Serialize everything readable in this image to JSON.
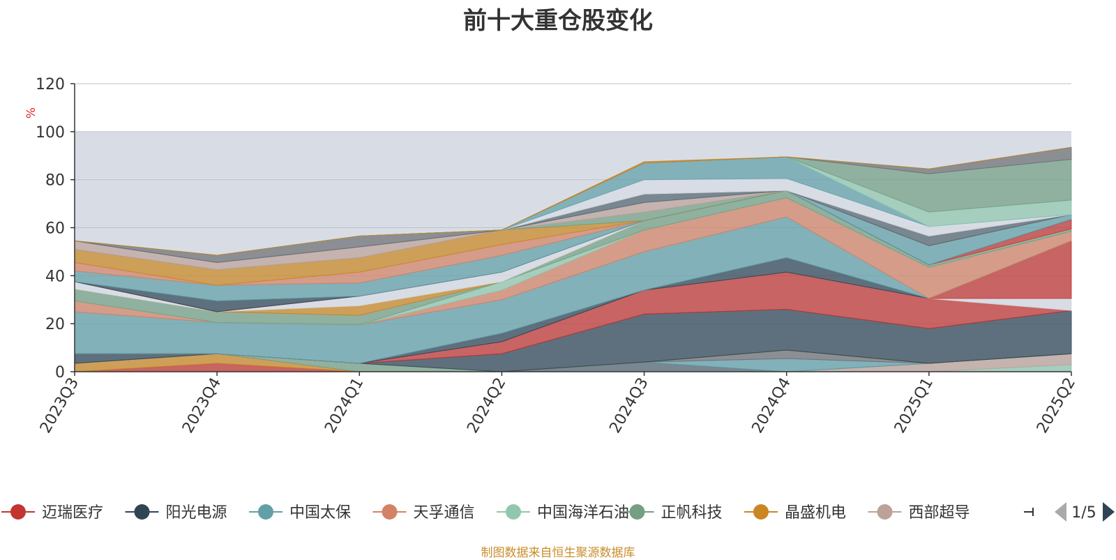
{
  "title": "前十大重仓股变化",
  "footer": "制图数据来自恒生聚源数据库",
  "legend": {
    "items": [
      {
        "label": "迈瑞医疗",
        "color": "#c23531"
      },
      {
        "label": "阳光电源",
        "color": "#2f4554"
      },
      {
        "label": "中国太保",
        "color": "#61a0a8"
      },
      {
        "label": "天孚通信",
        "color": "#d48265"
      },
      {
        "label": "中国海洋石油",
        "color": "#91c7ae"
      },
      {
        "label": "正帆科技",
        "color": "#749f83"
      },
      {
        "label": "晶盛机电",
        "color": "#ca8622"
      },
      {
        "label": "西部超导",
        "color": "#bda29a"
      }
    ],
    "page": "1/5"
  },
  "chart_data": {
    "type": "area",
    "stacked": true,
    "categories": [
      "2023Q3",
      "2023Q4",
      "2024Q1",
      "2024Q2",
      "2024Q3",
      "2024Q4",
      "2025Q1",
      "2025Q2"
    ],
    "ylim": [
      0,
      120
    ],
    "yticks": [
      0,
      20,
      40,
      60,
      80,
      100,
      120
    ],
    "ylabel": "%",
    "highlight_band": [
      0,
      100
    ],
    "band_color": "#d8dde5",
    "series": [
      {
        "color": "#91c7ae",
        "values": [
          0,
          0,
          0,
          0,
          0,
          0,
          0,
          3
        ]
      },
      {
        "color": "#bda29a",
        "values": [
          0,
          0,
          0,
          0,
          0,
          0,
          3.5,
          4.5
        ]
      },
      {
        "color": "#546570",
        "values": [
          0,
          0,
          0,
          0,
          4,
          0,
          0,
          0
        ]
      },
      {
        "color": "#61a0a8",
        "values": [
          0,
          0,
          0,
          0,
          0,
          5.5,
          0,
          0
        ]
      },
      {
        "color": "#6e7074",
        "values": [
          0,
          0,
          0,
          0,
          0,
          3.5,
          0,
          0
        ]
      },
      {
        "color": "#c23531",
        "values": [
          0,
          3.5,
          0,
          0,
          0,
          0,
          0,
          0
        ]
      },
      {
        "color": "#ca8622",
        "values": [
          3.5,
          4,
          0,
          0,
          0,
          0,
          0,
          0
        ]
      },
      {
        "color": "#749f83",
        "values": [
          0,
          0,
          3.5,
          0,
          0,
          0,
          0,
          0
        ]
      },
      {
        "color": "#2f4554",
        "values": [
          4,
          0,
          0,
          7.5,
          20,
          17,
          14.5,
          18
        ]
      },
      {
        "color": "#c23531",
        "values": [
          0,
          0,
          0,
          5,
          10,
          15.5,
          12.5,
          0
        ]
      },
      {
        "color": "#d8dde5",
        "values": [
          0,
          0,
          0,
          0,
          0,
          0,
          0,
          5
        ]
      },
      {
        "color": "#c23531",
        "values": [
          0,
          0,
          0,
          0,
          0,
          0,
          0,
          24
        ]
      },
      {
        "color": "#2f4554",
        "values": [
          0,
          0,
          0,
          3.5,
          0,
          6,
          0,
          0
        ]
      },
      {
        "color": "#61a0a8",
        "values": [
          17.5,
          13,
          16,
          14,
          16,
          17,
          0,
          0
        ]
      },
      {
        "color": "#d48265",
        "values": [
          4.5,
          0,
          0,
          4,
          9,
          8,
          13,
          4
        ]
      },
      {
        "color": "#91c7ae",
        "values": [
          0,
          0,
          0,
          3.5,
          0,
          0,
          0,
          0
        ]
      },
      {
        "color": "#749f83",
        "values": [
          5,
          4.5,
          4,
          0,
          4,
          3,
          1,
          1
        ]
      },
      {
        "color": "#ca8622",
        "values": [
          0,
          0,
          4,
          0,
          0,
          0,
          0,
          0
        ]
      },
      {
        "color": "#d8dde5",
        "values": [
          3,
          0,
          4,
          4,
          0,
          0,
          0,
          0
        ]
      },
      {
        "color": "#c23531",
        "values": [
          0,
          0,
          0,
          0,
          0,
          0,
          0,
          4
        ]
      },
      {
        "color": "#2f4554",
        "values": [
          0,
          4.5,
          0,
          0,
          0,
          0,
          0,
          0
        ]
      },
      {
        "color": "#61a0a8",
        "values": [
          4.5,
          6.5,
          5.5,
          7,
          0,
          0,
          8,
          2
        ]
      },
      {
        "color": "#d48265",
        "values": [
          3.5,
          0,
          4.5,
          4.5,
          0,
          0,
          0,
          0
        ]
      },
      {
        "color": "#ca8622",
        "values": [
          5.5,
          6.5,
          6,
          6,
          0,
          0,
          0,
          0
        ]
      },
      {
        "color": "#749f83",
        "values": [
          0,
          0,
          0,
          0,
          3.5,
          0,
          0,
          0
        ]
      },
      {
        "color": "#bda29a",
        "values": [
          3.5,
          3,
          4.5,
          0,
          4,
          0,
          0,
          0
        ]
      },
      {
        "color": "#546570",
        "values": [
          0,
          0,
          0,
          0,
          3.5,
          0,
          4,
          0
        ]
      },
      {
        "color": "#6e7074",
        "values": [
          0,
          3,
          4.5,
          0,
          0,
          0,
          0,
          0
        ]
      },
      {
        "color": "#d8dde5",
        "values": [
          0,
          0,
          0,
          0,
          6,
          5,
          4,
          0
        ]
      },
      {
        "color": "#61a0a8",
        "values": [
          0,
          0,
          0,
          0,
          7,
          9,
          0,
          0
        ]
      },
      {
        "color": "#91c7ae",
        "values": [
          0,
          0,
          0,
          0,
          0,
          0,
          6,
          6
        ]
      },
      {
        "color": "#749f83",
        "values": [
          0,
          0,
          0,
          0,
          0,
          0,
          16,
          17
        ]
      },
      {
        "color": "#6e7074",
        "values": [
          0,
          0,
          0,
          0,
          0,
          0,
          2,
          5
        ]
      },
      {
        "color": "#ca8622",
        "values": [
          0,
          0,
          0,
          0,
          0.5,
          0,
          0,
          0
        ]
      }
    ]
  }
}
